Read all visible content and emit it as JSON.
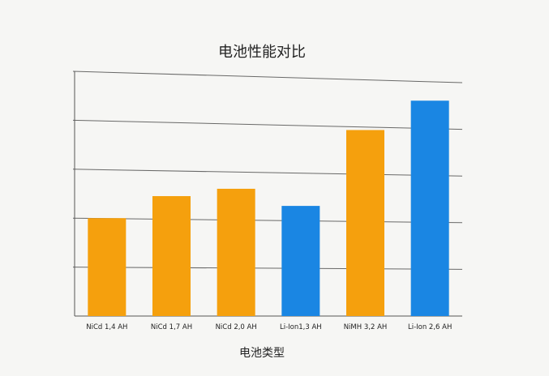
{
  "chart_data": {
    "type": "bar",
    "title": "电池性能对比",
    "xlabel": "电池类型",
    "ylabel": "",
    "categories": [
      "NiCd 1,4 AH",
      "NiCd 1,7 AH",
      "NiCd 2,0 AH",
      "Li-Ion1,3 AH",
      "NiMH 3,2 AH",
      "Li-Ion 2,6 AH"
    ],
    "values": [
      2.0,
      2.45,
      2.6,
      2.25,
      3.8,
      4.4
    ],
    "bar_colors": [
      "#f5a00d",
      "#f5a00d",
      "#f5a00d",
      "#1a86e3",
      "#f5a00d",
      "#1a86e3"
    ],
    "ylim": [
      0,
      5
    ],
    "ytick_step": 1,
    "show_y_tick_labels": false,
    "grid": true,
    "legend": "none",
    "colors": {
      "nicd_nimh": "#f5a00d",
      "li_ion": "#1a86e3",
      "grid": "#3a3a3a",
      "text": "#222222",
      "background": "#f6f6f4"
    }
  }
}
